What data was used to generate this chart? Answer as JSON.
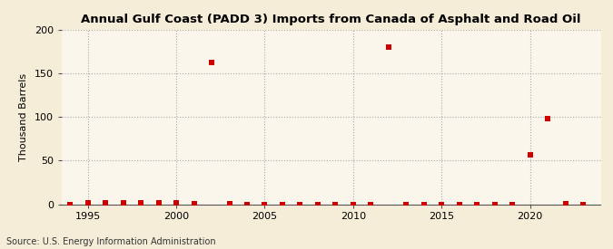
{
  "title": "Annual Gulf Coast (PADD 3) Imports from Canada of Asphalt and Road Oil",
  "ylabel": "Thousand Barrels",
  "source": "Source: U.S. Energy Information Administration",
  "background_color": "#f5edd8",
  "plot_background_color": "#faf6ec",
  "grid_color": "#aaaaaa",
  "marker_color": "#cc0000",
  "marker_size": 5,
  "xlim": [
    1993.5,
    2024
  ],
  "ylim": [
    0,
    200
  ],
  "yticks": [
    0,
    50,
    100,
    150,
    200
  ],
  "xticks": [
    1995,
    2000,
    2005,
    2010,
    2015,
    2020
  ],
  "data": {
    "years": [
      1994,
      1995,
      1996,
      1997,
      1998,
      1999,
      2000,
      2001,
      2002,
      2003,
      2004,
      2005,
      2006,
      2007,
      2008,
      2009,
      2010,
      2011,
      2012,
      2013,
      2014,
      2015,
      2016,
      2017,
      2018,
      2019,
      2020,
      2021,
      2022,
      2023
    ],
    "values": [
      0,
      2,
      2,
      2,
      2,
      2,
      2,
      1,
      163,
      1,
      0,
      0,
      0,
      0,
      0,
      0,
      0,
      0,
      180,
      0,
      0,
      0,
      0,
      0,
      0,
      0,
      57,
      98,
      1,
      0
    ]
  }
}
